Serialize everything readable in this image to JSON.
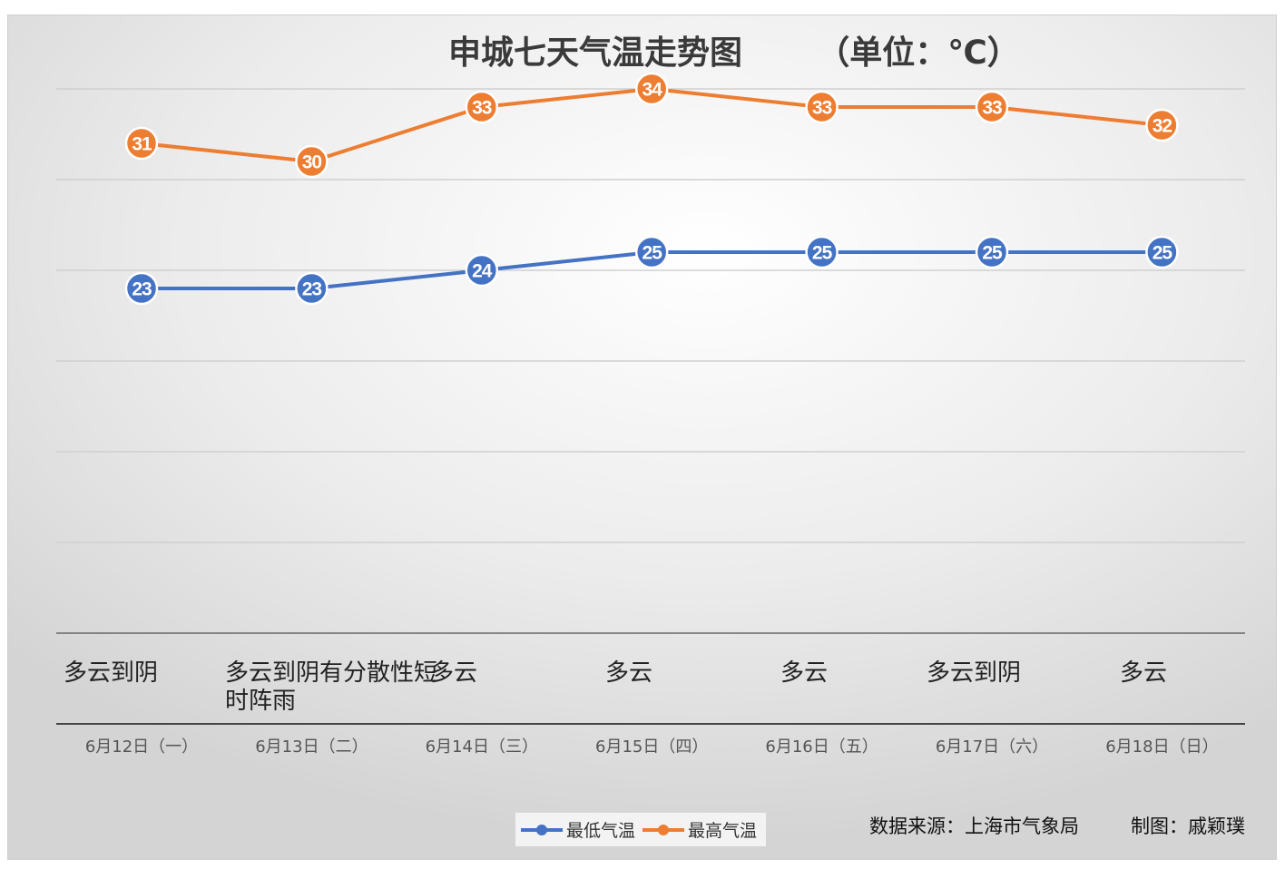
{
  "chart_data": {
    "type": "line",
    "title": "申城七天气温走势图",
    "unit_label": "（单位：℃）",
    "categories": [
      "6月12日（一）",
      "6月13日（二）",
      "6月14日（三）",
      "6月15日（四）",
      "6月16日（五）",
      "6月17日（六）",
      "6月18日（日）"
    ],
    "conditions": [
      "多云到阴",
      "多云到阴有分散性短时阵雨",
      "多云",
      "多云",
      "多云",
      "多云到阴",
      "多云"
    ],
    "series": [
      {
        "name": "最低气温",
        "values": [
          23,
          23,
          24,
          25,
          25,
          25,
          25
        ],
        "color": "#4472C4"
      },
      {
        "name": "最高气温",
        "values": [
          31,
          30,
          33,
          34,
          33,
          33,
          32
        ],
        "color": "#ED7D31"
      }
    ],
    "ylim": [
      4,
      34
    ],
    "grid": true,
    "legend": "bottom",
    "source": "数据来源：上海市气象局",
    "credit": "制图：戚颖璞"
  }
}
